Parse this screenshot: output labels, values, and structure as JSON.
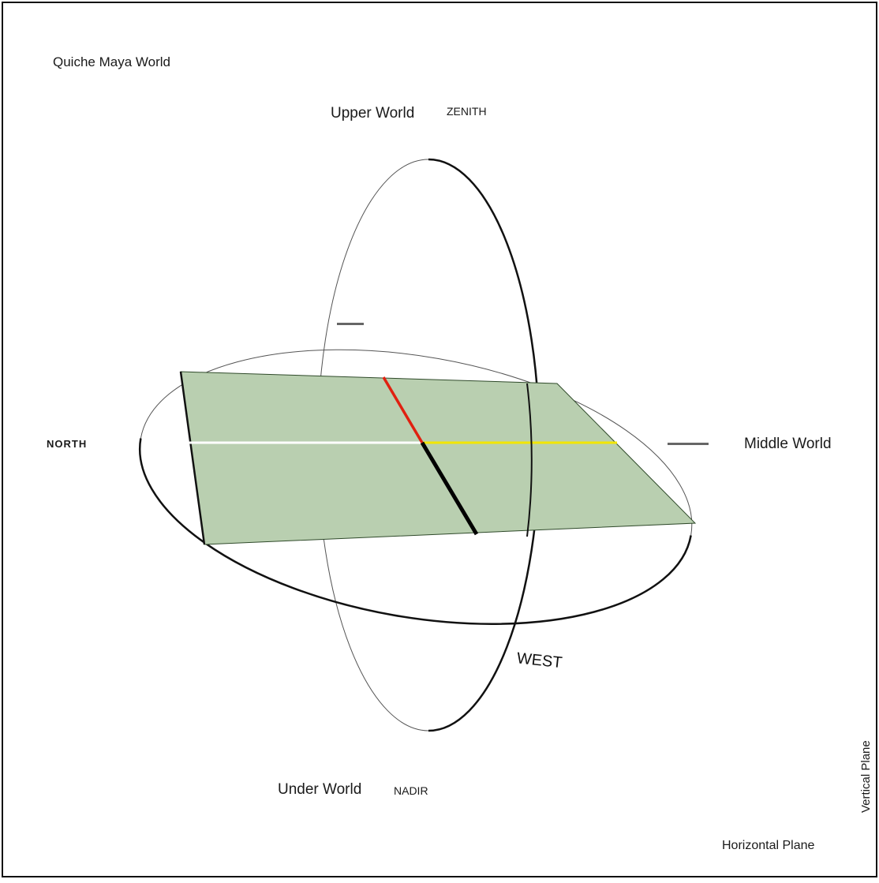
{
  "title": "Quiche Maya World",
  "labels": {
    "upper_world": "Upper World",
    "zenith": "ZENITH",
    "middle_world": "Middle World",
    "under_world": "Under World",
    "nadir": "NADIR",
    "north": "NORTH",
    "west": "WEST",
    "vertical_plane": "Vertical Plane",
    "horizontal_plane": "Horizontal Plane"
  },
  "colors": {
    "background": "#ffffff",
    "frame": "#111111",
    "outline": "#111111",
    "thin_outline": "#555555",
    "plane_fill": "#b9cfb0",
    "plane_edge": "#2f4a2a",
    "axis_red": "#e02010",
    "axis_white": "#ffffff",
    "axis_yellow": "#f2e600",
    "axis_black": "#000000"
  }
}
